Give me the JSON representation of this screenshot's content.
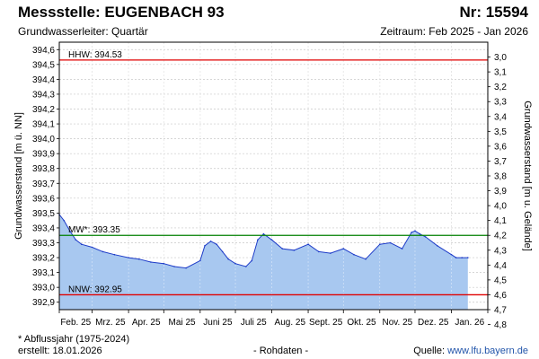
{
  "header": {
    "station": "Messstelle: EUGENBACH 93",
    "number": "Nr: 15594",
    "aquifer": "Grundwasserleiter: Quartär",
    "period": "Zeitraum: Feb 2025 - Jan 2026"
  },
  "footer": {
    "footnote": "* Abflussjahr (1975-2024)",
    "created": "erstellt:  18.01.2026",
    "status": "- Rohdaten -",
    "source_prefix": "Quelle: ",
    "source_link": "www.lfu.bayern.de"
  },
  "colors": {
    "area_fill": "#a8c8f0",
    "line": "#1e3cc8",
    "hhw": "#e00000",
    "nnw": "#e00000",
    "mw": "#008000",
    "grid": "#c8c8c8"
  },
  "chart_data": {
    "type": "area",
    "ylabel": "Grundwasserstand [m ü. NN]",
    "y2label": "Grundwasserstand [m u. Gelände]",
    "ylim": [
      392.85,
      394.65
    ],
    "y2lim": [
      2.9,
      4.7
    ],
    "y_ticks": [
      "392,9",
      "393,0",
      "393,1",
      "393,2",
      "393,3",
      "393,4",
      "393,5",
      "393,6",
      "393,7",
      "393,8",
      "393,9",
      "394,0",
      "394,1",
      "394,2",
      "394,3",
      "394,4",
      "394,5",
      "394,6"
    ],
    "y2_ticks": [
      "3,0",
      "3,1",
      "3,2",
      "3,3",
      "3,4",
      "3,5",
      "3,6",
      "3,7",
      "3,8",
      "3,9",
      "4,0",
      "4,1",
      "4,2",
      "4,3",
      "4,4",
      "4,5",
      "4,6",
      "4,7",
      "4,8"
    ],
    "x_ticks": [
      "Feb. 25",
      "Mrz. 25",
      "Apr. 25",
      "Mai 25",
      "Juni 25",
      "Juli 25",
      "Aug. 25",
      "Sept. 25",
      "Okt. 25",
      "Nov. 25",
      "Dez. 25",
      "Jan. 26"
    ],
    "grid": true,
    "reference_lines": [
      {
        "label": "HHW: 394.53",
        "value": 394.53,
        "kind": "hhw"
      },
      {
        "label": "MW*: 393.35",
        "value": 393.35,
        "kind": "mw"
      },
      {
        "label": "NNW: 392.95",
        "value": 392.95,
        "kind": "nnw"
      }
    ],
    "series": [
      {
        "x": [
          "2025-02-01",
          "2025-02-05",
          "2025-02-10",
          "2025-02-15",
          "2025-02-20",
          "2025-03-01",
          "2025-03-10",
          "2025-03-20",
          "2025-04-01",
          "2025-04-10",
          "2025-04-20",
          "2025-05-01",
          "2025-05-10",
          "2025-05-20",
          "2025-06-01",
          "2025-06-05",
          "2025-06-10",
          "2025-06-15",
          "2025-06-20",
          "2025-06-25",
          "2025-07-01",
          "2025-07-10",
          "2025-07-15",
          "2025-07-20",
          "2025-07-25",
          "2025-08-01",
          "2025-08-10",
          "2025-08-20",
          "2025-09-01",
          "2025-09-10",
          "2025-09-20",
          "2025-10-01",
          "2025-10-10",
          "2025-10-20",
          "2025-11-01",
          "2025-11-10",
          "2025-11-20",
          "2025-11-28",
          "2025-12-01",
          "2025-12-05",
          "2025-12-10",
          "2025-12-20",
          "2026-01-01",
          "2026-01-05",
          "2026-01-10",
          "2026-01-15"
        ],
        "values": [
          393.49,
          393.45,
          393.38,
          393.32,
          393.29,
          393.27,
          393.24,
          393.22,
          393.2,
          393.19,
          393.17,
          393.16,
          393.14,
          393.13,
          393.18,
          393.28,
          393.31,
          393.29,
          393.24,
          393.19,
          393.16,
          393.14,
          393.18,
          393.32,
          393.36,
          393.32,
          393.26,
          393.25,
          393.29,
          393.24,
          393.23,
          393.26,
          393.22,
          393.19,
          393.29,
          393.3,
          393.26,
          393.37,
          393.38,
          393.36,
          393.34,
          393.28,
          393.22,
          393.2,
          393.2,
          393.2
        ]
      }
    ]
  }
}
